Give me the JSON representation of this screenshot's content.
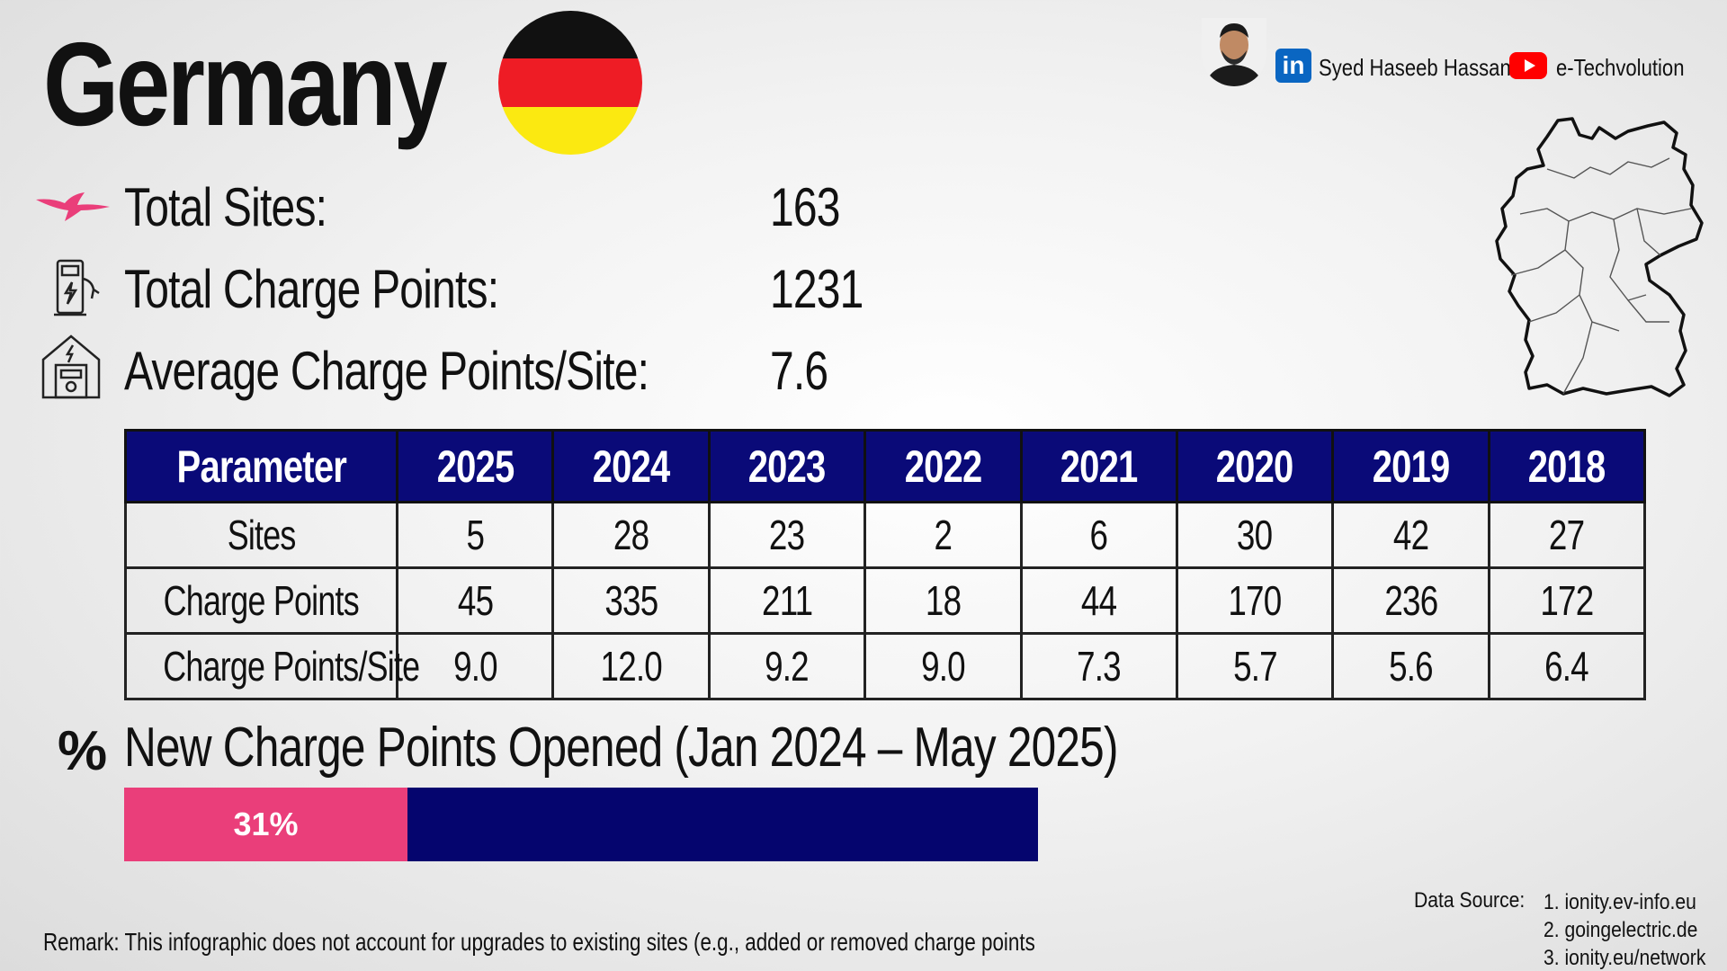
{
  "title": "Germany",
  "credits": {
    "name": "Syed Haseeb Hassan",
    "channel": "e-Techvolution"
  },
  "stats": [
    {
      "label": "Total Sites:",
      "value": "163",
      "icon": "bird-logo-icon"
    },
    {
      "label": "Total Charge Points:",
      "value": "1231",
      "icon": "charger-icon"
    },
    {
      "label": "Average Charge Points/Site:",
      "value": "7.6",
      "icon": "charging-station-icon"
    }
  ],
  "table": {
    "headers": [
      "Parameter",
      "2025",
      "2024",
      "2023",
      "2022",
      "2021",
      "2020",
      "2019",
      "2018"
    ],
    "rows": [
      [
        "Sites",
        "5",
        "28",
        "23",
        "2",
        "6",
        "30",
        "42",
        "27"
      ],
      [
        "Charge Points",
        "45",
        "335",
        "211",
        "18",
        "44",
        "170",
        "236",
        "172"
      ],
      [
        "Charge Points/Site",
        "9.0",
        "12.0",
        "9.2",
        "9.0",
        "7.3",
        "5.7",
        "5.6",
        "6.4"
      ]
    ]
  },
  "section": {
    "sign": "%",
    "title": "New Charge Points Opened (Jan 2024 – May 2025)"
  },
  "progress": {
    "label": "31%",
    "value": 0.31
  },
  "remark": "Remark: This infographic does not account for upgrades to existing sites (e.g., added or removed charge points",
  "sources": {
    "label": "Data Source:",
    "items": [
      "1. ionity.ev-info.eu",
      "2. goingelectric.de",
      "3. ionity.eu/network"
    ]
  },
  "colors": {
    "header_bg": "#0a0a78",
    "bar_bg": "#05056e",
    "bar_fill": "#ea3e7a",
    "flag_black": "#111111",
    "flag_red": "#ee1c25",
    "flag_gold": "#fbe911"
  }
}
